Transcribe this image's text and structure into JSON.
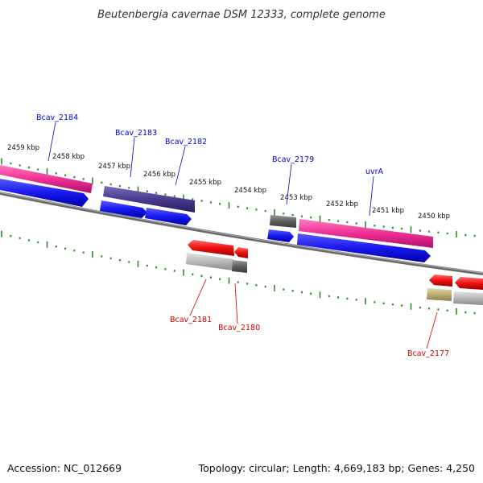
{
  "title": "Beutenbergia cavernae DSM 12333, complete genome",
  "footer": {
    "accession": "Accession: NC_012669",
    "summary": "Topology: circular; Length: 4,669,183 bp; Genes: 4,250"
  },
  "ruler": [
    "2459 kbp",
    "2458 kbp",
    "2457 kbp",
    "2456 kbp",
    "2455 kbp",
    "2454 kbp",
    "2453 kbp",
    "2452 kbp",
    "2451 kbp",
    "2450 kbp"
  ],
  "forward_labels": [
    "Bcav_2184",
    "Bcav_2183",
    "Bcav_2182",
    "Bcav_2179",
    "uvrA"
  ],
  "reverse_labels": [
    "Bcav_2181",
    "Bcav_2180",
    "Bcav_2177"
  ],
  "colors": {
    "forward_gene": "#1a1aee",
    "forward_rna": "#ee3399",
    "forward_purple": "#4a3a8e",
    "reverse_gene": "#ee1111",
    "reverse_feature": "#b8b8b8",
    "tick": "#2a8a2a",
    "backbone": "#808080"
  }
}
